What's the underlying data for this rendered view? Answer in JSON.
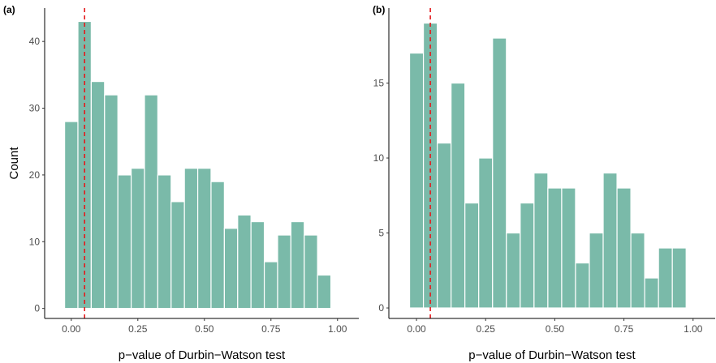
{
  "chart_data": [
    {
      "type": "bar",
      "panel_label": "(a)",
      "xlabel": "p−value of Durbin−Watson test",
      "ylabel": "Count",
      "bin_centers": [
        0.0,
        0.05,
        0.1,
        0.15,
        0.2,
        0.25,
        0.3,
        0.35,
        0.4,
        0.45,
        0.5,
        0.55,
        0.6,
        0.65,
        0.7,
        0.75,
        0.8,
        0.85,
        0.9,
        0.95,
        1.0
      ],
      "values": [
        28,
        43,
        34,
        32,
        20,
        21,
        32,
        20,
        16,
        21,
        21,
        19,
        12,
        14,
        13,
        7,
        11,
        13,
        11,
        5,
        0
      ],
      "bin_width": 0.05,
      "xlim": [
        -0.1,
        1.08
      ],
      "ylim": [
        -1.5,
        45
      ],
      "xticks": [
        0.0,
        0.25,
        0.5,
        0.75,
        1.0
      ],
      "xtick_labels": [
        "0.00",
        "0.25",
        "0.50",
        "0.75",
        "1.00"
      ],
      "yticks": [
        0,
        10,
        20,
        30,
        40
      ],
      "ytick_labels": [
        "0",
        "10",
        "20",
        "30",
        "40"
      ],
      "reference_line_x": 0.05,
      "bar_color": "#7abaa9",
      "reference_line_color": "#e41a1c",
      "grid": false
    },
    {
      "type": "bar",
      "panel_label": "(b)",
      "xlabel": "p−value of Durbin−Watson test",
      "ylabel": "",
      "bin_centers": [
        0.0,
        0.05,
        0.1,
        0.15,
        0.2,
        0.25,
        0.3,
        0.35,
        0.4,
        0.45,
        0.5,
        0.55,
        0.6,
        0.65,
        0.7,
        0.75,
        0.8,
        0.85,
        0.9,
        0.95,
        1.0
      ],
      "values": [
        17,
        19,
        11,
        15,
        7,
        10,
        18,
        5,
        7,
        9,
        8,
        8,
        3,
        5,
        9,
        8,
        5,
        2,
        4,
        4,
        0
      ],
      "bin_width": 0.05,
      "xlim": [
        -0.1,
        1.08
      ],
      "ylim": [
        -0.7,
        20
      ],
      "xticks": [
        0.0,
        0.25,
        0.5,
        0.75,
        1.0
      ],
      "xtick_labels": [
        "0.00",
        "0.25",
        "0.50",
        "0.75",
        "1.00"
      ],
      "yticks": [
        0,
        5,
        10,
        15
      ],
      "ytick_labels": [
        "0",
        "5",
        "10",
        "15"
      ],
      "reference_line_x": 0.05,
      "bar_color": "#7abaa9",
      "reference_line_color": "#e41a1c",
      "grid": false
    }
  ]
}
